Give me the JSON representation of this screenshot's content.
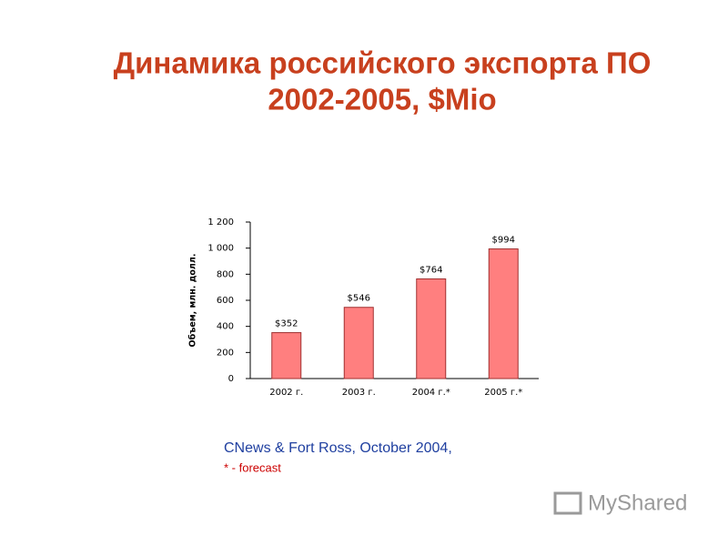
{
  "chart_data": {
    "type": "bar",
    "title": [
      "Динамика российского экспорта ПО",
      "2002-2005, $Mio"
    ],
    "y_label": "Объем, млн. долл.",
    "categories": [
      "2002 г.",
      "2003 г.",
      "2004 г.*",
      "2005 г.*"
    ],
    "values": [
      352,
      546,
      764,
      994
    ],
    "value_labels": [
      "$352",
      "$546",
      "$764",
      "$994"
    ],
    "color": "#ff7f7f",
    "ylim": [
      0,
      1200
    ],
    "yticks": [
      0,
      200,
      400,
      600,
      800,
      {
        "value": 1000,
        "label": "1 000"
      },
      {
        "value": 1200,
        "label": "1 200"
      }
    ],
    "grid": false
  },
  "source": "CNews & Fort Ross, October 2004,",
  "footnote": "* - forecast",
  "watermark": "MyShared"
}
